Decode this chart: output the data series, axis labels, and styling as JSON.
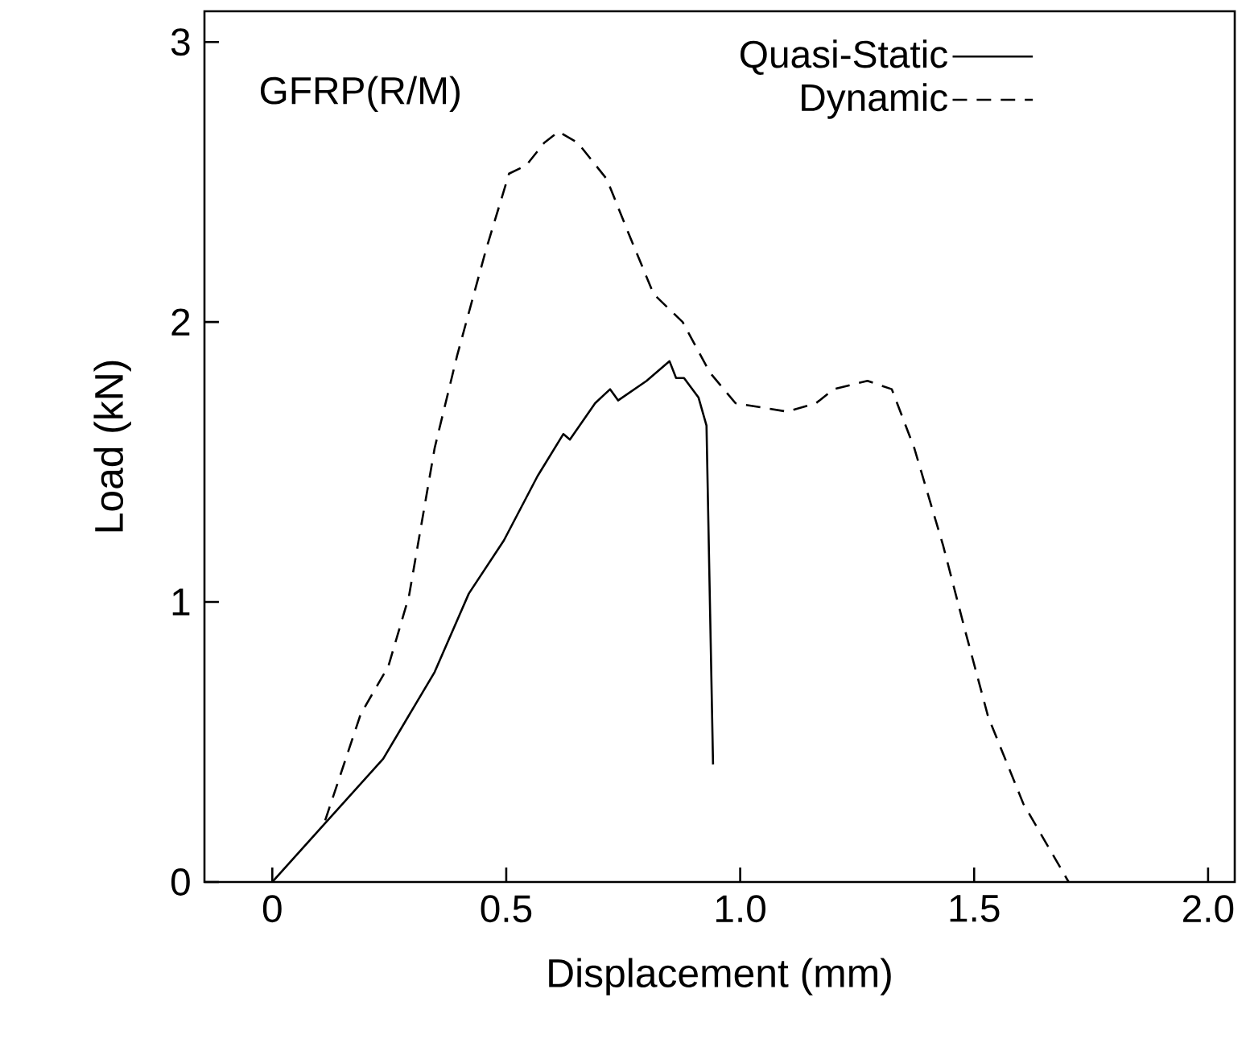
{
  "chart_data": {
    "type": "line",
    "xlabel": "Displacement (mm)",
    "ylabel": "Load  (kN)",
    "annotations": [
      "GFRP(R/M)"
    ],
    "xlim": [
      -0.145,
      2.057
    ],
    "ylim": [
      0,
      3.11
    ],
    "xticks": [
      0,
      0.5,
      {
        "value": 1.0,
        "label": "1.0"
      },
      1.5,
      {
        "value": 2.0,
        "label": "2.0"
      }
    ],
    "yticks": [
      0,
      1,
      2,
      3
    ],
    "grid": false,
    "legend": "top right",
    "marker": "none",
    "series": [
      {
        "name": "Quasi-Static",
        "color": "#000000",
        "line_style": "solid",
        "x": [
          0,
          0.113,
          0.237,
          0.347,
          0.42,
          0.495,
          0.567,
          0.622,
          0.636,
          0.69,
          0.722,
          0.739,
          0.8,
          0.849,
          0.863,
          0.88,
          0.911,
          0.928,
          0.942
        ],
        "values": [
          0,
          0.21,
          0.44,
          0.75,
          1.03,
          1.22,
          1.45,
          1.6,
          1.58,
          1.71,
          1.76,
          1.72,
          1.79,
          1.86,
          1.8,
          1.8,
          1.73,
          1.63,
          0.42
        ]
      },
      {
        "name": "Dynamic",
        "color": "#000000",
        "line_style": "dashed",
        "x": [
          0.113,
          0.189,
          0.248,
          0.292,
          0.347,
          0.395,
          0.457,
          0.506,
          0.543,
          0.581,
          0.612,
          0.653,
          0.715,
          0.763,
          0.815,
          0.877,
          0.935,
          0.99,
          1.1,
          1.162,
          1.2,
          1.272,
          1.324,
          1.372,
          1.434,
          1.482,
          1.53,
          1.605,
          1.702
        ],
        "values": [
          0.22,
          0.6,
          0.77,
          1.02,
          1.55,
          1.88,
          2.26,
          2.53,
          2.56,
          2.64,
          2.68,
          2.64,
          2.51,
          2.31,
          2.1,
          2.0,
          1.82,
          1.71,
          1.68,
          1.71,
          1.76,
          1.79,
          1.76,
          1.55,
          1.2,
          0.89,
          0.59,
          0.28,
          0
        ]
      }
    ]
  }
}
